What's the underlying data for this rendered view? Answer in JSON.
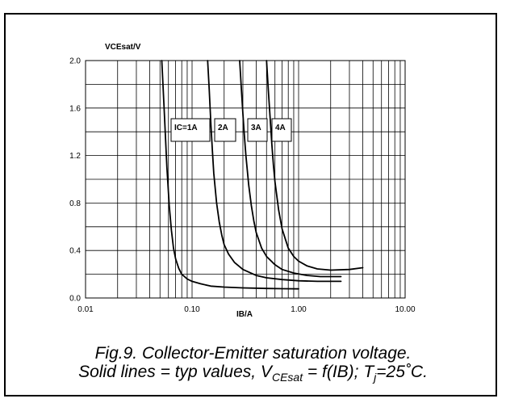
{
  "chart_data": {
    "type": "line",
    "ylabel": "VCEsat/V",
    "xlabel": "IB/A",
    "xscale": "log",
    "xlim": [
      0.01,
      10
    ],
    "ylim": [
      0,
      2.0
    ],
    "x_ticks": [
      0.01,
      0.1,
      1,
      10
    ],
    "x_tick_labels": [
      "0.01",
      "0.10",
      "1.00",
      "10.00"
    ],
    "y_ticks": [
      0,
      0.4,
      0.8,
      1.2,
      1.6,
      2.0
    ],
    "y_tick_labels": [
      "0.0",
      "0.4",
      "0.8",
      "1.2",
      "1.6",
      "2.0"
    ],
    "grid": true,
    "series": [
      {
        "name": "IC=1A",
        "x": [
          0.052,
          0.055,
          0.058,
          0.061,
          0.064,
          0.067,
          0.07,
          0.075,
          0.08,
          0.09,
          0.1,
          0.12,
          0.15,
          0.2,
          0.3,
          0.5,
          0.7,
          1.0
        ],
        "y": [
          2.0,
          1.55,
          1.1,
          0.78,
          0.57,
          0.42,
          0.33,
          0.25,
          0.2,
          0.16,
          0.14,
          0.12,
          0.1,
          0.092,
          0.085,
          0.08,
          0.078,
          0.077
        ]
      },
      {
        "name": "2A",
        "x": [
          0.14,
          0.145,
          0.15,
          0.155,
          0.16,
          0.17,
          0.18,
          0.19,
          0.2,
          0.22,
          0.25,
          0.3,
          0.4,
          0.5,
          0.7,
          1.0,
          1.5,
          2.5
        ],
        "y": [
          2.0,
          1.75,
          1.48,
          1.25,
          1.05,
          0.8,
          0.64,
          0.53,
          0.45,
          0.37,
          0.3,
          0.24,
          0.19,
          0.17,
          0.155,
          0.145,
          0.14,
          0.14
        ]
      },
      {
        "name": "3A",
        "x": [
          0.28,
          0.29,
          0.3,
          0.31,
          0.32,
          0.34,
          0.36,
          0.38,
          0.4,
          0.45,
          0.5,
          0.6,
          0.7,
          0.9,
          1.2,
          1.6,
          2.5
        ],
        "y": [
          2.0,
          1.77,
          1.55,
          1.36,
          1.2,
          0.95,
          0.78,
          0.65,
          0.55,
          0.42,
          0.35,
          0.28,
          0.24,
          0.21,
          0.19,
          0.18,
          0.18
        ]
      },
      {
        "name": "4A",
        "x": [
          0.5,
          0.52,
          0.54,
          0.56,
          0.58,
          0.6,
          0.65,
          0.7,
          0.8,
          0.9,
          1.0,
          1.2,
          1.5,
          2.0,
          3.0,
          4.0
        ],
        "y": [
          2.0,
          1.75,
          1.52,
          1.3,
          1.12,
          0.98,
          0.74,
          0.58,
          0.42,
          0.35,
          0.31,
          0.27,
          0.245,
          0.235,
          0.24,
          0.255
        ]
      }
    ],
    "annotations": [
      "IC=1A",
      "2A",
      "3A",
      "4A"
    ]
  },
  "caption": {
    "line1": "Fig.9.   Collector-Emitter saturation voltage.",
    "line2_prefix": "Solid lines = typ values, V",
    "line2_sub": "CEsat",
    "line2_mid": " = f(IB); T",
    "line2_sub2": "j",
    "line2_suffix": "=25˚C."
  }
}
